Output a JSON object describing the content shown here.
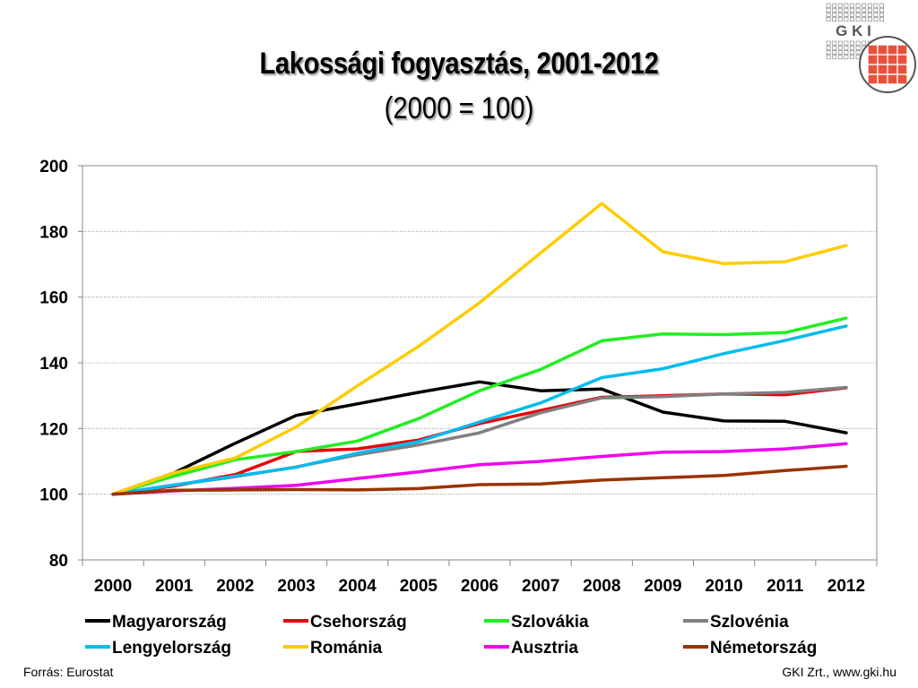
{
  "title": "Lakossági fogyasztás, 2001-2012",
  "subtitle": "(2000 = 100)",
  "source": "Forrás: Eurostat",
  "credit": "GKI Zrt., www.gki.hu",
  "logo_text": "G K I",
  "chart_data": {
    "type": "line",
    "title": "Lakossági fogyasztás, 2001-2012",
    "subtitle": "(2000 = 100)",
    "categories": [
      "2000",
      "2001",
      "2002",
      "2003",
      "2004",
      "2005",
      "2006",
      "2007",
      "2008",
      "2009",
      "2010",
      "2011",
      "2012"
    ],
    "ylim": [
      80,
      200
    ],
    "yticks": [
      80,
      100,
      120,
      140,
      160,
      180,
      200
    ],
    "grid": true,
    "legend_position": "bottom",
    "series": [
      {
        "name": "Magyarország",
        "color": "#000000",
        "values": [
          100,
          106.5,
          115.5,
          124,
          127.5,
          131,
          134.2,
          131.5,
          132,
          125,
          122.3,
          122.2,
          118.7
        ]
      },
      {
        "name": "Csehország",
        "color": "#e8000b",
        "values": [
          100,
          102.5,
          106,
          113,
          113.8,
          116.5,
          121.5,
          125.5,
          129.5,
          130,
          130.5,
          130.3,
          132.4
        ]
      },
      {
        "name": "Szlovákia",
        "color": "#22ee22",
        "values": [
          100,
          105.5,
          110.5,
          113,
          116.2,
          123,
          131.5,
          138,
          146.7,
          148.8,
          148.6,
          149.2,
          153.6
        ]
      },
      {
        "name": "Szlovénia",
        "color": "#808080",
        "values": [
          100,
          102.8,
          105.3,
          108.3,
          112,
          115,
          118.7,
          124.8,
          129.3,
          129.7,
          130.5,
          131,
          132.5
        ]
      },
      {
        "name": "Lengyelország",
        "color": "#00bbee",
        "values": [
          100,
          102.8,
          105.5,
          108.2,
          112.5,
          116,
          122,
          127.8,
          135.5,
          138.2,
          142.8,
          146.8,
          151.2
        ]
      },
      {
        "name": "Románia",
        "color": "#ffcc00",
        "values": [
          100,
          106.5,
          111,
          120.5,
          133,
          145,
          158.3,
          173.5,
          188.5,
          173.8,
          170.2,
          170.8,
          175.7
        ]
      },
      {
        "name": "Ausztria",
        "color": "#ee00ee",
        "values": [
          100,
          101,
          101.8,
          102.7,
          104.8,
          106.8,
          109,
          110,
          111.5,
          112.8,
          113,
          113.8,
          115.4
        ]
      },
      {
        "name": "Németország",
        "color": "#993300",
        "values": [
          100,
          101.2,
          101.3,
          101.4,
          101.3,
          101.7,
          102.9,
          103.1,
          104.3,
          105,
          105.7,
          107.2,
          108.5
        ]
      }
    ]
  }
}
